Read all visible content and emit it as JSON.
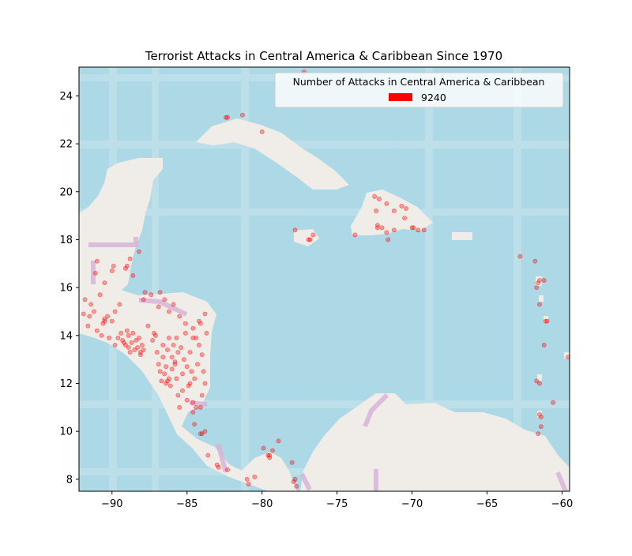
{
  "chart_data": {
    "type": "scatter",
    "title": "Terrorist Attacks in Central America & Caribbean Since 1970",
    "xlabel": "",
    "ylabel": "",
    "xlim": [
      -92.2,
      -59.5
    ],
    "ylim": [
      7.5,
      25.2
    ],
    "xticks": [
      -90,
      -85,
      -80,
      -75,
      -70,
      -65,
      -60
    ],
    "yticks": [
      8,
      10,
      12,
      14,
      16,
      18,
      20,
      22,
      24
    ],
    "xtick_labels": [
      "−90",
      "−85",
      "−80",
      "−75",
      "−70",
      "−65",
      "−60"
    ],
    "ytick_labels": [
      "8",
      "10",
      "12",
      "14",
      "16",
      "18",
      "20",
      "22",
      "24"
    ],
    "grid": false,
    "colors": {
      "ocean": "#add8e6",
      "land": "#f0ede8",
      "border": "#d8b4d8",
      "points": "#ff0000"
    },
    "legend": {
      "title": "Number of Attacks in Central America & Caribbean",
      "entries": [
        {
          "label": "9240",
          "color": "#ff0000"
        }
      ],
      "position": "top-right"
    },
    "points": [
      [
        -82.4,
        23.1
      ],
      [
        -82.3,
        23.1
      ],
      [
        -81.3,
        23.2
      ],
      [
        -80.0,
        22.5
      ],
      [
        -77.2,
        25.0
      ],
      [
        -77.8,
        18.4
      ],
      [
        -76.9,
        18.0
      ],
      [
        -76.8,
        18.0
      ],
      [
        -76.6,
        18.2
      ],
      [
        -73.8,
        18.2
      ],
      [
        -72.3,
        18.5
      ],
      [
        -72.3,
        18.6
      ],
      [
        -72.0,
        18.5
      ],
      [
        -72.5,
        19.8
      ],
      [
        -72.2,
        19.7
      ],
      [
        -71.7,
        18.3
      ],
      [
        -71.6,
        18.0
      ],
      [
        -71.2,
        18.4
      ],
      [
        -70.7,
        19.4
      ],
      [
        -70.4,
        19.3
      ],
      [
        -70.0,
        18.5
      ],
      [
        -69.9,
        18.5
      ],
      [
        -69.6,
        18.4
      ],
      [
        -70.5,
        18.9
      ],
      [
        -71.7,
        19.5
      ],
      [
        -71.2,
        19.2
      ],
      [
        -69.2,
        18.4
      ],
      [
        -72.4,
        19.2
      ],
      [
        -62.8,
        17.3
      ],
      [
        -61.8,
        17.1
      ],
      [
        -61.6,
        16.2
      ],
      [
        -61.5,
        16.3
      ],
      [
        -61.2,
        16.3
      ],
      [
        -61.7,
        16.0
      ],
      [
        -61.5,
        15.3
      ],
      [
        -61.1,
        14.6
      ],
      [
        -61.0,
        14.6
      ],
      [
        -61.2,
        13.6
      ],
      [
        -61.7,
        12.1
      ],
      [
        -61.5,
        12.0
      ],
      [
        -60.6,
        11.2
      ],
      [
        -61.5,
        10.7
      ],
      [
        -61.4,
        10.6
      ],
      [
        -61.4,
        10.2
      ],
      [
        -61.6,
        9.9
      ],
      [
        -59.6,
        13.1
      ],
      [
        -79.5,
        9.0
      ],
      [
        -79.6,
        9.0
      ],
      [
        -79.5,
        8.9
      ],
      [
        -79.9,
        9.3
      ],
      [
        -79.3,
        9.2
      ],
      [
        -78.9,
        9.6
      ],
      [
        -78.0,
        8.7
      ],
      [
        -77.8,
        8.0
      ],
      [
        -77.9,
        7.9
      ],
      [
        -77.7,
        7.7
      ],
      [
        -80.5,
        8.1
      ],
      [
        -82.3,
        8.4
      ],
      [
        -81.0,
        8.0
      ],
      [
        -80.9,
        7.8
      ],
      [
        -84.1,
        9.9
      ],
      [
        -84.0,
        9.9
      ],
      [
        -83.8,
        10.0
      ],
      [
        -84.5,
        10.3
      ],
      [
        -83.0,
        8.6
      ],
      [
        -82.9,
        8.5
      ],
      [
        -83.6,
        9.0
      ],
      [
        -88.2,
        17.5
      ],
      [
        -88.8,
        17.2
      ],
      [
        -89.0,
        16.9
      ],
      [
        -89.1,
        16.8
      ],
      [
        -88.6,
        16.5
      ],
      [
        -89.9,
        16.9
      ],
      [
        -90.0,
        16.7
      ],
      [
        -91.0,
        17.1
      ],
      [
        -91.1,
        16.6
      ],
      [
        -90.5,
        16.2
      ],
      [
        -90.8,
        15.7
      ],
      [
        -91.4,
        15.3
      ],
      [
        -91.2,
        15.0
      ],
      [
        -91.5,
        14.8
      ],
      [
        -90.5,
        14.6
      ],
      [
        -90.5,
        14.7
      ],
      [
        -90.6,
        14.5
      ],
      [
        -90.3,
        14.8
      ],
      [
        -90.0,
        14.6
      ],
      [
        -89.8,
        15.0
      ],
      [
        -89.5,
        15.3
      ],
      [
        -91.8,
        15.5
      ],
      [
        -91.9,
        14.9
      ],
      [
        -91.6,
        14.4
      ],
      [
        -91.0,
        14.2
      ],
      [
        -90.7,
        14.0
      ],
      [
        -90.2,
        13.9
      ],
      [
        -89.2,
        13.7
      ],
      [
        -89.3,
        13.8
      ],
      [
        -89.1,
        13.6
      ],
      [
        -88.9,
        13.5
      ],
      [
        -88.7,
        13.7
      ],
      [
        -88.5,
        13.4
      ],
      [
        -88.3,
        13.5
      ],
      [
        -88.1,
        13.3
      ],
      [
        -88.4,
        13.8
      ],
      [
        -89.6,
        13.9
      ],
      [
        -89.8,
        13.6
      ],
      [
        -88.9,
        14.0
      ],
      [
        -88.6,
        14.1
      ],
      [
        -88.0,
        13.6
      ],
      [
        -87.9,
        13.4
      ],
      [
        -88.2,
        13.9
      ],
      [
        -89.0,
        14.2
      ],
      [
        -88.8,
        13.3
      ],
      [
        -89.4,
        14.1
      ],
      [
        -88.1,
        13.2
      ],
      [
        -87.2,
        14.1
      ],
      [
        -87.1,
        14.0
      ],
      [
        -87.3,
        13.8
      ],
      [
        -87.6,
        14.4
      ],
      [
        -87.9,
        15.5
      ],
      [
        -87.8,
        15.8
      ],
      [
        -87.4,
        15.7
      ],
      [
        -86.8,
        15.8
      ],
      [
        -86.5,
        15.5
      ],
      [
        -86.9,
        15.2
      ],
      [
        -86.2,
        15.0
      ],
      [
        -85.9,
        15.3
      ],
      [
        -85.5,
        14.8
      ],
      [
        -85.1,
        14.5
      ],
      [
        -84.6,
        14.3
      ],
      [
        -84.2,
        14.6
      ],
      [
        -83.8,
        14.9
      ],
      [
        -86.3,
        12.1
      ],
      [
        -86.2,
        12.2
      ],
      [
        -86.4,
        12.0
      ],
      [
        -86.1,
        11.9
      ],
      [
        -86.5,
        12.4
      ],
      [
        -86.8,
        12.5
      ],
      [
        -86.9,
        12.8
      ],
      [
        -86.6,
        13.1
      ],
      [
        -86.3,
        13.4
      ],
      [
        -86.0,
        13.1
      ],
      [
        -85.8,
        12.9
      ],
      [
        -85.6,
        13.3
      ],
      [
        -85.9,
        13.6
      ],
      [
        -86.2,
        13.9
      ],
      [
        -85.4,
        13.5
      ],
      [
        -85.2,
        13.0
      ],
      [
        -85.0,
        12.7
      ],
      [
        -84.7,
        12.5
      ],
      [
        -84.5,
        12.2
      ],
      [
        -84.9,
        11.9
      ],
      [
        -85.3,
        11.7
      ],
      [
        -85.6,
        11.5
      ],
      [
        -84.6,
        11.2
      ],
      [
        -84.4,
        11.0
      ],
      [
        -84.1,
        11.0
      ],
      [
        -84.3,
        12.8
      ],
      [
        -84.0,
        13.2
      ],
      [
        -83.8,
        12.0
      ],
      [
        -84.0,
        11.5
      ],
      [
        -83.9,
        12.5
      ],
      [
        -84.2,
        13.6
      ],
      [
        -84.6,
        13.9
      ],
      [
        -85.1,
        14.1
      ],
      [
        -86.0,
        12.6
      ],
      [
        -86.7,
        12.1
      ],
      [
        -85.7,
        12.2
      ],
      [
        -85.3,
        12.4
      ],
      [
        -84.8,
        13.3
      ],
      [
        -84.4,
        13.9
      ],
      [
        -83.7,
        14.1
      ],
      [
        -84.1,
        14.5
      ],
      [
        -85.7,
        13.9
      ],
      [
        -86.6,
        13.6
      ],
      [
        -87.0,
        13.3
      ],
      [
        -85.0,
        11.3
      ],
      [
        -84.6,
        10.8
      ],
      [
        -85.5,
        11.0
      ],
      [
        -84.8,
        12.0
      ],
      [
        -85.8,
        12.8
      ],
      [
        -86.4,
        12.7
      ]
    ]
  }
}
